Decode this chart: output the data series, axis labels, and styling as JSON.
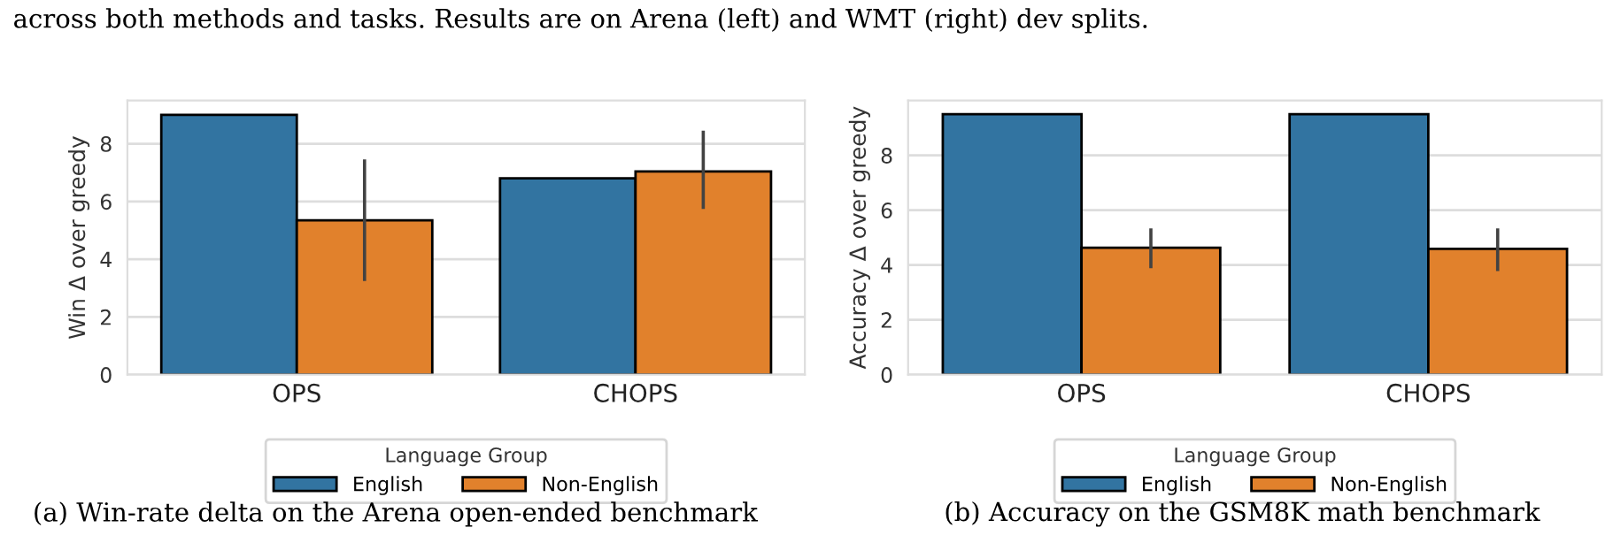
{
  "chart_data": [
    {
      "type": "bar",
      "ylabel": "Win Δ over greedy",
      "categories": [
        "OPS",
        "CHOPS"
      ],
      "ylim": [
        0,
        9.5
      ],
      "yticks": [
        0,
        2,
        4,
        6,
        8
      ],
      "grid": "y",
      "legend": "bottom",
      "legend_title": "Language Group",
      "series": [
        {
          "name": "English",
          "color": "#3274a1",
          "values": [
            9.0,
            6.8
          ]
        },
        {
          "name": "Non-English",
          "color": "#e1812c",
          "values": [
            5.35,
            7.04
          ],
          "errors": [
            [
              3.3,
              7.4
            ],
            [
              5.8,
              8.4
            ]
          ]
        }
      ],
      "annotations": [
        "across both methods and tasks. Results are on Arena (left) and WMT (right) dev splits.",
        "(a) Win-rate delta on the Arena open-ended benchmark"
      ]
    },
    {
      "type": "bar",
      "ylabel": "Accuracy Δ over greedy",
      "categories": [
        "OPS",
        "CHOPS"
      ],
      "ylim": [
        0,
        10
      ],
      "yticks": [
        0,
        2,
        4,
        6,
        8
      ],
      "grid": "y",
      "legend": "bottom",
      "legend_title": "Language Group",
      "series": [
        {
          "name": "English",
          "color": "#3274a1",
          "values": [
            9.5,
            9.5
          ]
        },
        {
          "name": "Non-English",
          "color": "#e1812c",
          "values": [
            4.63,
            4.59
          ],
          "errors": [
            [
              3.94,
              5.28
            ],
            [
              3.84,
              5.28
            ]
          ]
        }
      ],
      "annotations": [
        "(b) Accuracy on the GSM8K math benchmark"
      ]
    }
  ]
}
